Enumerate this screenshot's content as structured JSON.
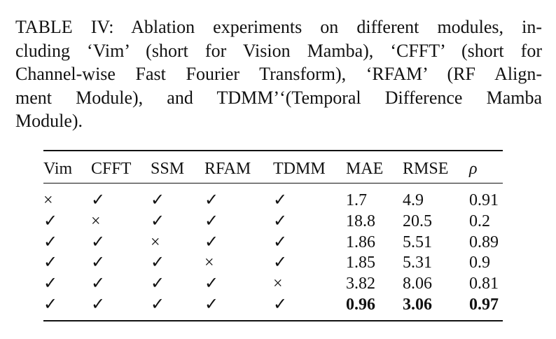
{
  "caption": {
    "lines": [
      "TABLE IV: Ablation experiments on different modules, in-",
      "cluding ‘Vim’ (short for Vision Mamba), ‘CFFT’ (short for",
      "Channel-wise Fast Fourier Transform), ‘RFAM’ (RF Align-",
      "ment Module), and TDMM’‘(Temporal Difference Mamba",
      "Module)."
    ]
  },
  "table": {
    "header": [
      "Vim",
      "CFFT",
      "SSM",
      "RFAM",
      "TDMM",
      "MAE",
      "RMSE",
      "ρ"
    ],
    "rows": [
      [
        "×",
        "✓",
        "✓",
        "✓",
        "✓",
        "1.7",
        "4.9",
        "0.91"
      ],
      [
        "✓",
        "×",
        "✓",
        "✓",
        "✓",
        "18.8",
        "20.5",
        "0.2"
      ],
      [
        "✓",
        "✓",
        "×",
        "✓",
        "✓",
        "1.86",
        "5.51",
        "0.89"
      ],
      [
        "✓",
        "✓",
        "✓",
        "×",
        "✓",
        "1.85",
        "5.31",
        "0.9"
      ],
      [
        "✓",
        "✓",
        "✓",
        "✓",
        "×",
        "3.82",
        "8.06",
        "0.81"
      ],
      [
        "✓",
        "✓",
        "✓",
        "✓",
        "✓",
        "0.96",
        "3.06",
        "0.97"
      ]
    ]
  }
}
